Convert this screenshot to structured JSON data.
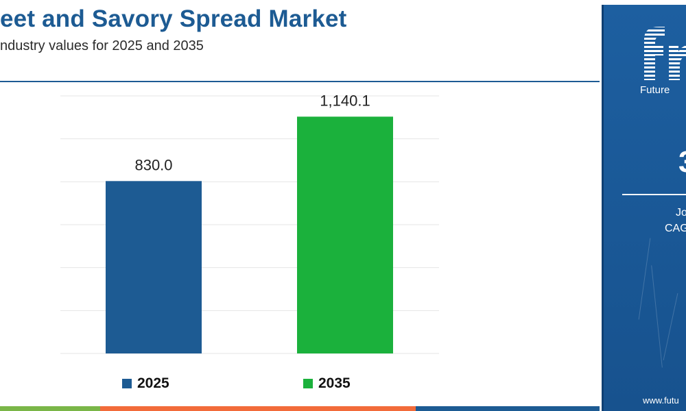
{
  "header": {
    "title": "eet and Savory Spread Market",
    "subtitle": "ndustry values for 2025 and 2035"
  },
  "chart_data": {
    "type": "bar",
    "categories": [
      "2025",
      "2035"
    ],
    "values": [
      830.0,
      1140.1
    ],
    "value_labels": [
      "830.0",
      "1,140.1"
    ],
    "colors": [
      "#1d5b93",
      "#1bb13c"
    ],
    "ylim": [
      0,
      1240
    ],
    "grid": true,
    "legend": {
      "position": "bottom",
      "entries": [
        {
          "label": "2025",
          "color": "#1d5b93"
        },
        {
          "label": "2035",
          "color": "#1bb13c"
        }
      ]
    }
  },
  "side_panel": {
    "logo_letters": "fr",
    "logo_text": "Future",
    "headline_fragment": "3",
    "line1": "Jo",
    "line2": "CAG",
    "website": "www.futu"
  },
  "colors": {
    "brand_blue": "#1d5b93",
    "accent_green": "#1bb13c",
    "panel_blue": "#1a5996",
    "strip": [
      "#7ab648",
      "#f26b3a",
      "#1d5b93"
    ]
  }
}
